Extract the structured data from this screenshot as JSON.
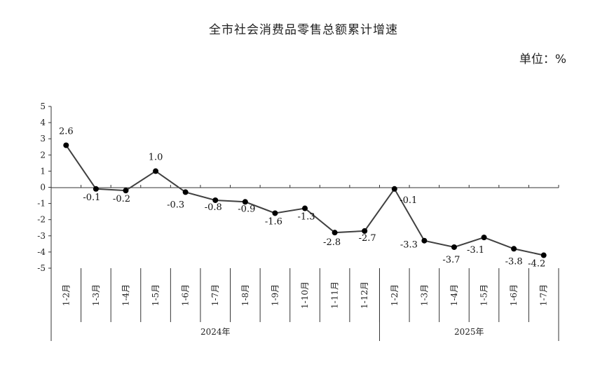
{
  "chart_data": {
    "type": "line",
    "title": "全市社会消费品零售总额累计增速",
    "unit_label": "单位：%",
    "ylim": [
      -5,
      5
    ],
    "yticks": [
      "5",
      "4",
      "3",
      "2",
      "1",
      "0",
      "-1",
      "-2",
      "-3",
      "-4",
      "-5"
    ],
    "categories": [
      "1-2月",
      "1-3月",
      "1-4月",
      "1-5月",
      "1-6月",
      "1-7月",
      "1-8月",
      "1-9月",
      "1-10月",
      "1-11月",
      "1-12月",
      "1-2月",
      "1-3月",
      "1-4月",
      "1-5月",
      "1-6月",
      "1-7月"
    ],
    "groups": [
      {
        "label": "2024年",
        "count": 11
      },
      {
        "label": "2025年",
        "count": 6
      }
    ],
    "values": [
      2.6,
      -0.1,
      -0.2,
      1.0,
      -0.3,
      -0.8,
      -0.9,
      -1.6,
      -1.3,
      -2.8,
      -2.7,
      -0.1,
      -3.3,
      -3.7,
      -3.1,
      -3.8,
      -4.2
    ],
    "data_labels": [
      "2.6",
      "-0.1",
      "-0.2",
      "1.0",
      "-0.3",
      "-0.8",
      "-0.9",
      "-1.6",
      "-1.3",
      "-2.8",
      "-2.7",
      "-0.1",
      "-3.3",
      "-3.7",
      "-3.1",
      "-3.8",
      "-4.2"
    ],
    "line_color": "#404040",
    "marker_color": "#000000",
    "grid": false,
    "legend": "none"
  }
}
